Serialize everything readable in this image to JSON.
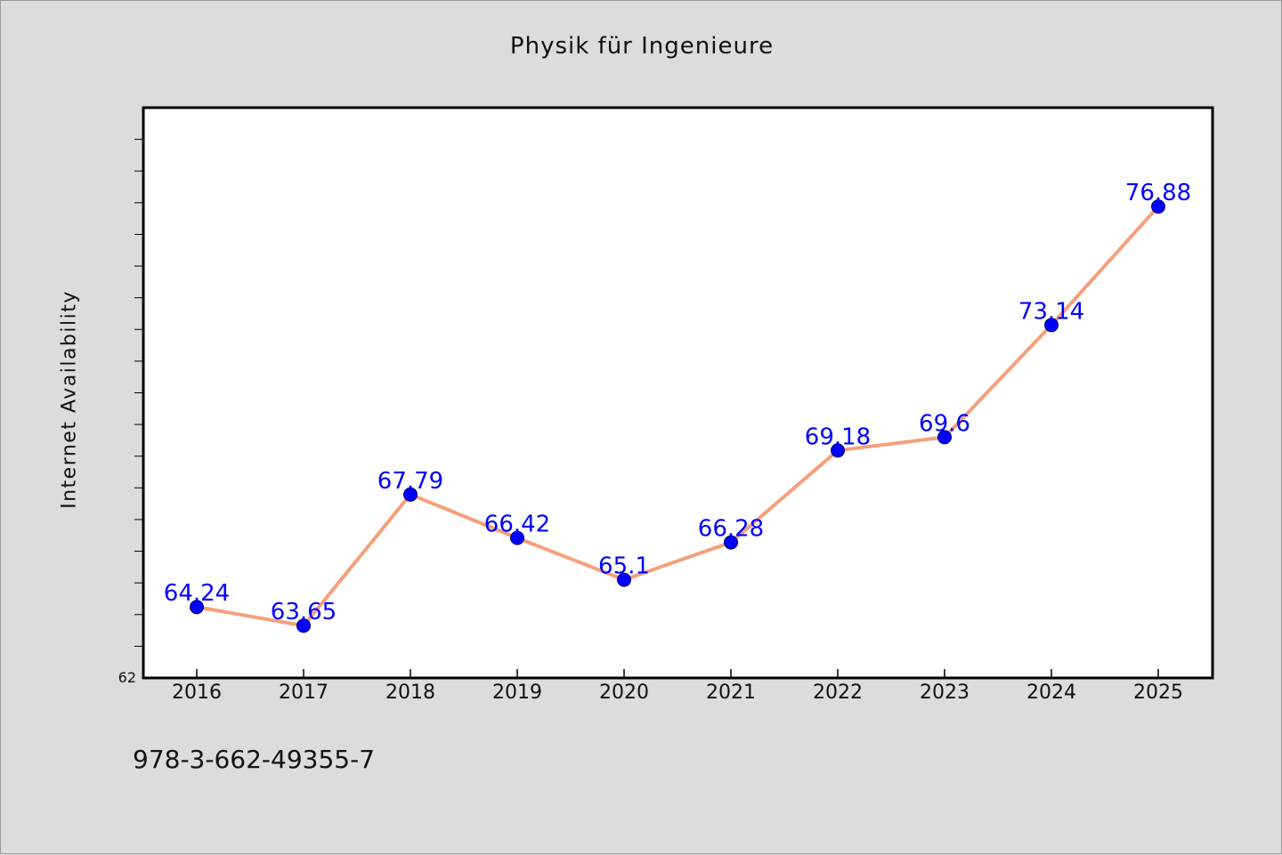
{
  "chart_title": "Physik für Ingenieure",
  "footer_code": "978-3-662-49355-7",
  "colors": {
    "background": "#dcdcdc",
    "plot_background": "#ffffff",
    "line": "#f4a07c",
    "marker": "#0000ff",
    "data_label": "#0000ff"
  },
  "chart_data": {
    "type": "line",
    "title": "Physik für Ingenieure",
    "xlabel": "",
    "ylabel": "Internet Availability",
    "categories": [
      "2016",
      "2017",
      "2018",
      "2019",
      "2020",
      "2021",
      "2022",
      "2023",
      "2024",
      "2025"
    ],
    "series": [
      {
        "values": [
          64.24,
          63.65,
          67.79,
          66.42,
          65.1,
          66.28,
          69.18,
          69.6,
          73.14,
          76.88
        ]
      }
    ],
    "data_labels": [
      "64.24",
      "63.65",
      "67.79",
      "66.42",
      "65.1",
      "66.28",
      "69.18",
      "69.6",
      "73.14",
      "76.88"
    ],
    "y_tick_label": "62",
    "ylim": [
      62,
      80
    ],
    "y_minor_tick_step": 1,
    "grid": false,
    "legend": "none"
  }
}
